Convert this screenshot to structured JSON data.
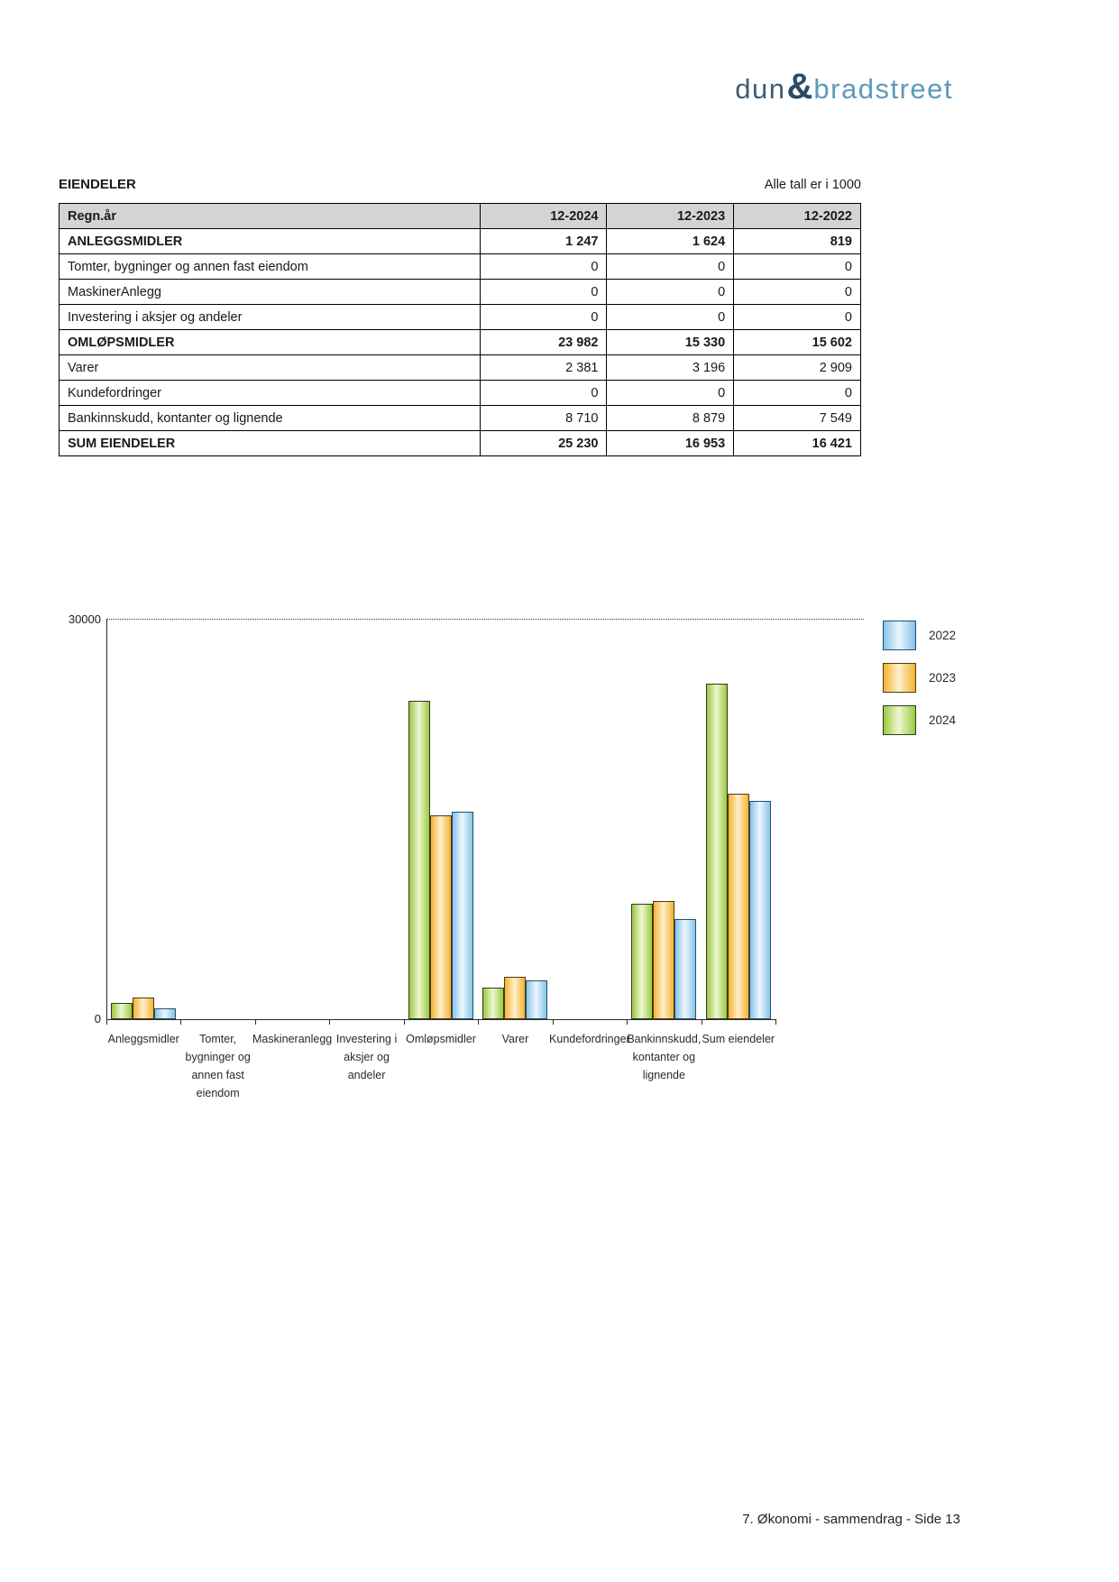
{
  "logo": {
    "part1": "dun",
    "amp": "&",
    "part2": "bradstreet"
  },
  "table": {
    "title": "EIENDELER",
    "note": "Alle tall er i 1000",
    "header": {
      "label": "Regn.år",
      "cols": [
        "12-2024",
        "12-2023",
        "12-2022"
      ]
    },
    "rows": [
      {
        "label": "ANLEGGSMIDLER",
        "values": [
          "1 247",
          "1 624",
          "819"
        ],
        "bold": true
      },
      {
        "label": "Tomter, bygninger og annen fast eiendom",
        "values": [
          "0",
          "0",
          "0"
        ],
        "bold": false
      },
      {
        "label": "MaskinerAnlegg",
        "values": [
          "0",
          "0",
          "0"
        ],
        "bold": false
      },
      {
        "label": "Investering i aksjer og andeler",
        "values": [
          "0",
          "0",
          "0"
        ],
        "bold": false
      },
      {
        "label": "OMLØPSMIDLER",
        "values": [
          "23 982",
          "15 330",
          "15 602"
        ],
        "bold": true
      },
      {
        "label": "Varer",
        "values": [
          "2 381",
          "3 196",
          "2 909"
        ],
        "bold": false
      },
      {
        "label": "Kundefordringer",
        "values": [
          "0",
          "0",
          "0"
        ],
        "bold": false
      },
      {
        "label": "Bankinnskudd, kontanter og lignende",
        "values": [
          "8 710",
          "8 879",
          "7 549"
        ],
        "bold": false
      },
      {
        "label": "SUM EIENDELER",
        "values": [
          "25 230",
          "16 953",
          "16 421"
        ],
        "bold": true
      }
    ]
  },
  "chart_data": {
    "type": "bar",
    "title": "",
    "categories": [
      [
        "Anleggsmidler"
      ],
      [
        "Tomter,",
        "bygninger og",
        "annen fast",
        "eiendom"
      ],
      [
        "Maskineranlegg"
      ],
      [
        "Investering i",
        "aksjer og",
        "andeler"
      ],
      [
        "Omløpsmidler"
      ],
      [
        "Varer"
      ],
      [
        "Kundefordringer"
      ],
      [
        "Bankinnskudd,",
        "kontanter og",
        "lignende"
      ],
      [
        "Sum eiendeler"
      ]
    ],
    "series": [
      {
        "name": "2024",
        "values": [
          1247,
          0,
          0,
          0,
          23982,
          2381,
          0,
          8710,
          25230
        ],
        "edge": "#9cc93f",
        "mid": "#eef7d3",
        "border": "#2f3a20"
      },
      {
        "name": "2023",
        "values": [
          1624,
          0,
          0,
          0,
          15330,
          3196,
          0,
          8879,
          16953
        ],
        "edge": "#f6b230",
        "mid": "#fdf0cd",
        "border": "#4a3c14"
      },
      {
        "name": "2022",
        "values": [
          819,
          0,
          0,
          0,
          15602,
          2909,
          0,
          7549,
          16421
        ],
        "edge": "#87c3e8",
        "mid": "#ecf6fd",
        "border": "#1f4f73"
      }
    ],
    "legend_order": [
      "2022",
      "2023",
      "2024"
    ],
    "legend_position": "top-right outside plot",
    "ylim": [
      0,
      30000
    ],
    "ytick_labels": {
      "max": "30000",
      "min": "0"
    },
    "gridline_y": 30000,
    "xlabel": "",
    "ylabel": ""
  },
  "footer": {
    "page_label": "7. Økonomi - sammendrag - Side 13"
  }
}
